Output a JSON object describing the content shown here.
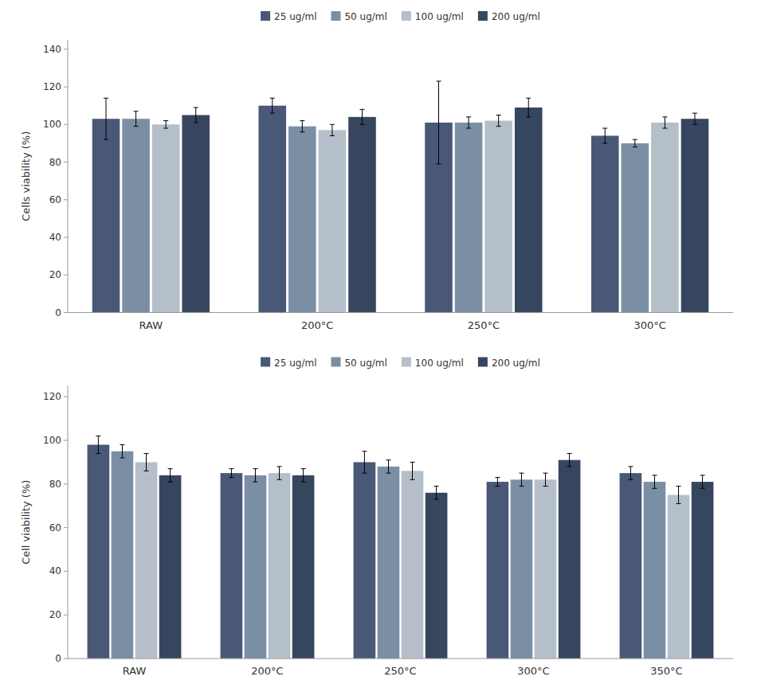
{
  "chart_data": [
    {
      "type": "bar",
      "categories": [
        "RAW",
        "200°C",
        "250°C",
        "300°C"
      ],
      "series": [
        {
          "name": "25 ug/ml",
          "color": "#4a5878",
          "values": [
            103,
            110,
            101,
            94
          ],
          "errors": [
            11,
            4,
            22,
            4
          ]
        },
        {
          "name": "50 ug/ml",
          "color": "#7b8fa4",
          "values": [
            103,
            99,
            101,
            90
          ],
          "errors": [
            4,
            3,
            3,
            2
          ]
        },
        {
          "name": "100 ug/ml",
          "color": "#b5bfc9",
          "values": [
            100,
            97,
            102,
            101
          ],
          "errors": [
            2,
            3,
            3,
            3
          ]
        },
        {
          "name": "200 ug/ml",
          "color": "#37465f",
          "values": [
            105,
            104,
            109,
            103
          ],
          "errors": [
            4,
            4,
            5,
            3
          ]
        }
      ],
      "ylabel": "Cells viability (%)",
      "ylim": [
        0,
        145
      ],
      "yticks": [
        0,
        20,
        40,
        60,
        80,
        100,
        120,
        140
      ],
      "grid": false,
      "legend": "top"
    },
    {
      "type": "bar",
      "categories": [
        "RAW",
        "200°C",
        "250°C",
        "300°C",
        "350°C"
      ],
      "series": [
        {
          "name": "25 ug/ml",
          "color": "#4a5878",
          "values": [
            98,
            85,
            90,
            81,
            85
          ],
          "errors": [
            4,
            2,
            5,
            2,
            3
          ]
        },
        {
          "name": "50 ug/ml",
          "color": "#7b8fa4",
          "values": [
            95,
            84,
            88,
            82,
            81
          ],
          "errors": [
            3,
            3,
            3,
            3,
            3
          ]
        },
        {
          "name": "100 ug/ml",
          "color": "#b5bfc9",
          "values": [
            90,
            85,
            86,
            82,
            75
          ],
          "errors": [
            4,
            3,
            4,
            3,
            4
          ]
        },
        {
          "name": "200 ug/ml",
          "color": "#37465f",
          "values": [
            84,
            84,
            76,
            91,
            81
          ],
          "errors": [
            3,
            3,
            3,
            3,
            3
          ]
        }
      ],
      "ylabel": "Cell viability (%)",
      "ylim": [
        0,
        125
      ],
      "yticks": [
        0,
        20,
        40,
        60,
        80,
        100,
        120
      ],
      "grid": false,
      "legend": "top"
    }
  ]
}
